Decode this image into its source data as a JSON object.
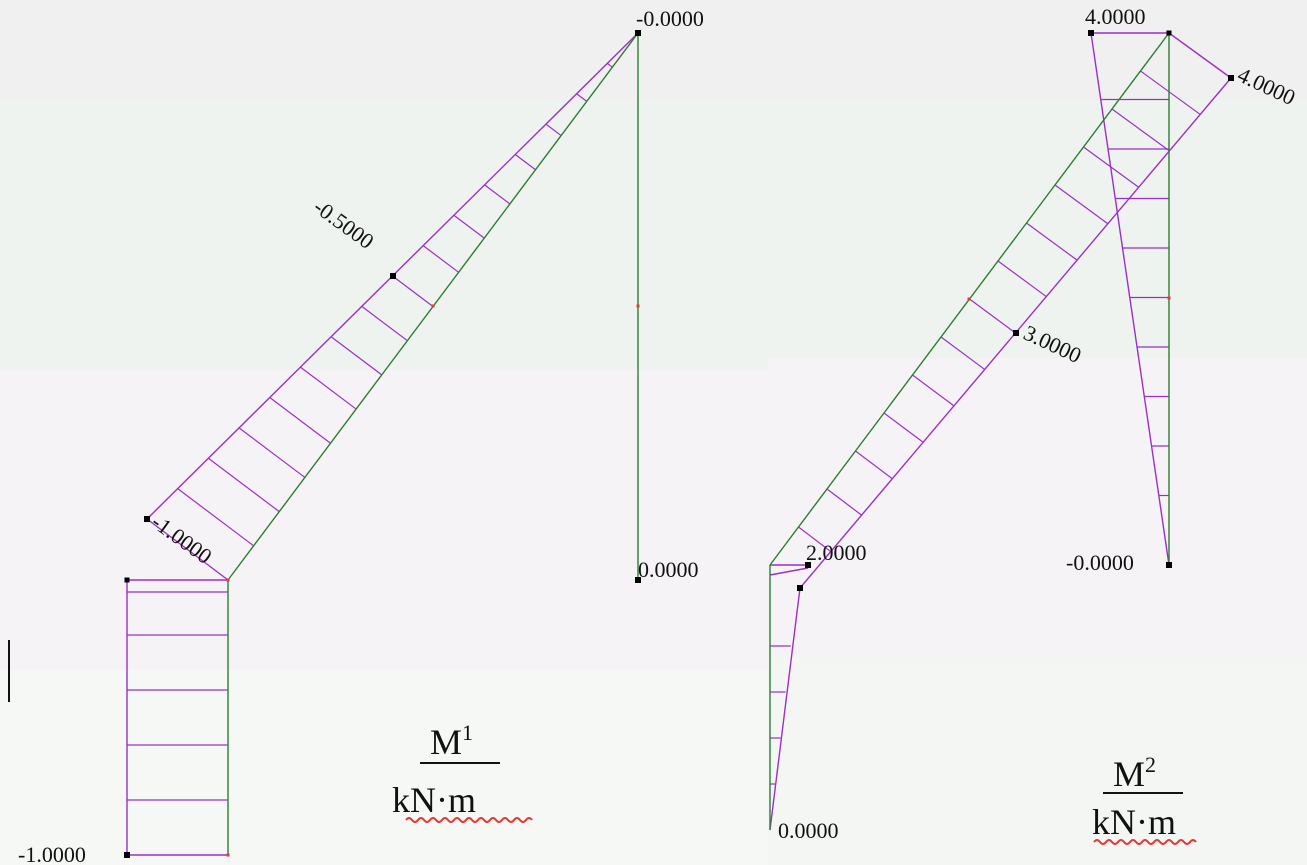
{
  "colors": {
    "member": "#2e7d32",
    "hatch": "#9b30c8",
    "node": "#000000",
    "midpoint": "#e53935",
    "spellcheck": "#e53935"
  },
  "panel1": {
    "labels": {
      "top_right": "-0.0000",
      "mid_incline": "-0.5000",
      "knee": "-1.0000",
      "bottom_right": "0.0000",
      "bottom_left": "-1.0000"
    },
    "caption": {
      "symbol": "M",
      "superscript": "1",
      "unit": "kN·m"
    }
  },
  "panel2": {
    "labels": {
      "top_left": "4.0000",
      "top_right": "4.0000",
      "mid": "3.0000",
      "knee": "2.0000",
      "right_bottom": "-0.0000",
      "bottom": "0.0000"
    },
    "caption": {
      "symbol": "M",
      "superscript": "2",
      "unit": "kN·m"
    }
  }
}
